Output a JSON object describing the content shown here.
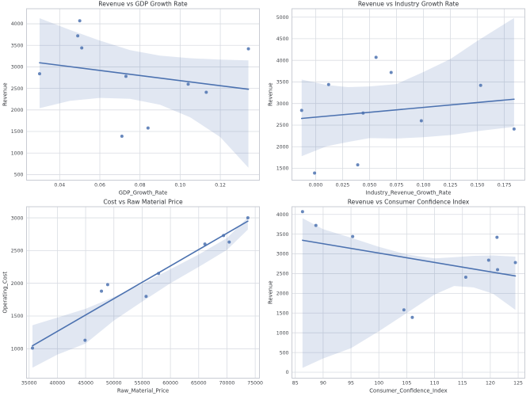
{
  "figure": {
    "background": "#ffffff",
    "layout": "2x2-scatter-grid"
  },
  "style": {
    "point_color": "#4c72b0",
    "line_color": "#4c72b0",
    "band_color": "rgba(76,114,176,0.17)",
    "grid_color": "#d9dce2",
    "frame_color": "#c9ccd3",
    "tick_text_color": "#44474c",
    "label_text_color": "#33363b",
    "title_text_color": "#2f3237"
  },
  "chart_data": [
    {
      "type": "scatter",
      "title": "Revenue vs GDP Growth Rate",
      "xlabel": "GDP_Growth_Rate",
      "ylabel": "Revenue",
      "xlim": [
        0.0235,
        0.1395
      ],
      "ylim": [
        370,
        4350
      ],
      "xticks": {
        "values": [
          0.04,
          0.06,
          0.08,
          0.1,
          0.12
        ],
        "labels": [
          "0.04",
          "0.06",
          "0.08",
          "0.10",
          "0.12"
        ]
      },
      "yticks": {
        "values": [
          500,
          1000,
          1500,
          2000,
          2500,
          3000,
          3500,
          4000
        ],
        "labels": [
          "500",
          "1000",
          "1500",
          "2000",
          "2500",
          "3000",
          "3500",
          "4000"
        ]
      },
      "points": [
        [
          0.03,
          2840
        ],
        [
          0.05,
          4070
        ],
        [
          0.049,
          3720
        ],
        [
          0.051,
          3440
        ],
        [
          0.071,
          1390
        ],
        [
          0.073,
          2780
        ],
        [
          0.084,
          1580
        ],
        [
          0.104,
          2600
        ],
        [
          0.113,
          2410
        ],
        [
          0.134,
          3420
        ]
      ],
      "regression": [
        [
          0.03,
          3095
        ],
        [
          0.134,
          2480
        ]
      ],
      "band": [
        [
          0.03,
          2040,
          4130
        ],
        [
          0.045,
          2210,
          3860
        ],
        [
          0.06,
          2280,
          3610
        ],
        [
          0.075,
          2260,
          3390
        ],
        [
          0.09,
          2120,
          3260
        ],
        [
          0.105,
          1830,
          3200
        ],
        [
          0.12,
          1370,
          3170
        ],
        [
          0.134,
          660,
          3150
        ]
      ]
    },
    {
      "type": "scatter",
      "title": "Revenue vs Industry Growth Rate",
      "xlabel": "Industry_Revenue_Growth_Rate",
      "ylabel": "Revenue",
      "xlim": [
        -0.022,
        0.194
      ],
      "ylim": [
        1225,
        5195
      ],
      "xticks": {
        "values": [
          0.0,
          0.025,
          0.05,
          0.075,
          0.1,
          0.125,
          0.15,
          0.175
        ],
        "labels": [
          "0.000",
          "0.025",
          "0.050",
          "0.075",
          "0.100",
          "0.125",
          "0.150",
          "0.175"
        ]
      },
      "yticks": {
        "values": [
          1500,
          2000,
          2500,
          3000,
          3500,
          4000,
          4500,
          5000
        ],
        "labels": [
          "1500",
          "2000",
          "2500",
          "3000",
          "3500",
          "4000",
          "4500",
          "5000"
        ]
      },
      "points": [
        [
          -0.013,
          2840
        ],
        [
          -0.001,
          1390
        ],
        [
          0.012,
          3440
        ],
        [
          0.039,
          1580
        ],
        [
          0.044,
          2780
        ],
        [
          0.056,
          4070
        ],
        [
          0.07,
          3720
        ],
        [
          0.098,
          2600
        ],
        [
          0.153,
          3420
        ],
        [
          0.184,
          2410
        ]
      ],
      "regression": [
        [
          -0.013,
          2655
        ],
        [
          0.184,
          3100
        ]
      ],
      "band": [
        [
          -0.013,
          1780,
          3555
        ],
        [
          0.01,
          2010,
          3430
        ],
        [
          0.03,
          2110,
          3380
        ],
        [
          0.05,
          2200,
          3395
        ],
        [
          0.075,
          2190,
          3450
        ],
        [
          0.1,
          2220,
          3730
        ],
        [
          0.125,
          2270,
          4030
        ],
        [
          0.15,
          2360,
          4450
        ],
        [
          0.184,
          2460,
          4980
        ]
      ]
    },
    {
      "type": "scatter",
      "title": "Cost vs Raw Material Price",
      "xlabel": "Raw_Material_Price",
      "ylabel": "Operating_Cost",
      "xlim": [
        34550,
        75750
      ],
      "ylim": [
        550,
        3170
      ],
      "xticks": {
        "values": [
          35000,
          40000,
          45000,
          50000,
          55000,
          60000,
          65000,
          70000,
          75000
        ],
        "labels": [
          "35000",
          "40000",
          "45000",
          "50000",
          "55000",
          "60000",
          "65000",
          "70000",
          "75000"
        ]
      },
      "yticks": {
        "values": [
          1000,
          1500,
          2000,
          2500,
          3000
        ],
        "labels": [
          "1000",
          "1500",
          "2000",
          "2500",
          "3000"
        ]
      },
      "points": [
        [
          35600,
          1010
        ],
        [
          44900,
          1130
        ],
        [
          47800,
          1880
        ],
        [
          48900,
          1980
        ],
        [
          55700,
          1800
        ],
        [
          57900,
          2150
        ],
        [
          66100,
          2600
        ],
        [
          69400,
          2730
        ],
        [
          70400,
          2630
        ],
        [
          73700,
          3000
        ]
      ],
      "regression": [
        [
          35600,
          1045
        ],
        [
          73700,
          2950
        ]
      ],
      "band": [
        [
          35600,
          710,
          1360
        ],
        [
          40000,
          910,
          1475
        ],
        [
          45000,
          1080,
          1610
        ],
        [
          50000,
          1430,
          1790
        ],
        [
          55000,
          1720,
          1990
        ],
        [
          60000,
          2000,
          2215
        ],
        [
          65000,
          2250,
          2440
        ],
        [
          70000,
          2510,
          2690
        ],
        [
          73700,
          2820,
          3010
        ]
      ]
    },
    {
      "type": "scatter",
      "title": "Revenue vs Consumer Confidence Index",
      "xlabel": "Consumer_Confidence_Index",
      "ylabel": "Revenue",
      "xlim": [
        84.4,
        126.2
      ],
      "ylim": [
        -150,
        4195
      ],
      "xticks": {
        "values": [
          85,
          90,
          95,
          100,
          105,
          110,
          115,
          120,
          125
        ],
        "labels": [
          "85",
          "90",
          "95",
          "100",
          "105",
          "110",
          "115",
          "120",
          "125"
        ]
      },
      "yticks": {
        "values": [
          0,
          500,
          1000,
          1500,
          2000,
          2500,
          3000,
          3500,
          4000
        ],
        "labels": [
          "0",
          "500",
          "1000",
          "1500",
          "2000",
          "2500",
          "3000",
          "3500",
          "4000"
        ]
      },
      "points": [
        [
          86.3,
          4070
        ],
        [
          88.7,
          3720
        ],
        [
          95.3,
          3440
        ],
        [
          104.5,
          1580
        ],
        [
          106.0,
          1390
        ],
        [
          115.6,
          2410
        ],
        [
          119.7,
          2840
        ],
        [
          121.2,
          3420
        ],
        [
          121.3,
          2600
        ],
        [
          124.5,
          2780
        ]
      ],
      "regression": [
        [
          86.3,
          3345
        ],
        [
          124.5,
          2440
        ]
      ],
      "band": [
        [
          86.3,
          110,
          3905
        ],
        [
          90,
          350,
          3625
        ],
        [
          95,
          610,
          3410
        ],
        [
          100,
          1040,
          3180
        ],
        [
          105,
          1500,
          2985
        ],
        [
          110,
          1970,
          2885
        ],
        [
          113.5,
          2185,
          2915
        ],
        [
          117,
          2150,
          2950
        ],
        [
          120.5,
          1990,
          2960
        ],
        [
          124.5,
          1580,
          2930
        ]
      ]
    }
  ]
}
